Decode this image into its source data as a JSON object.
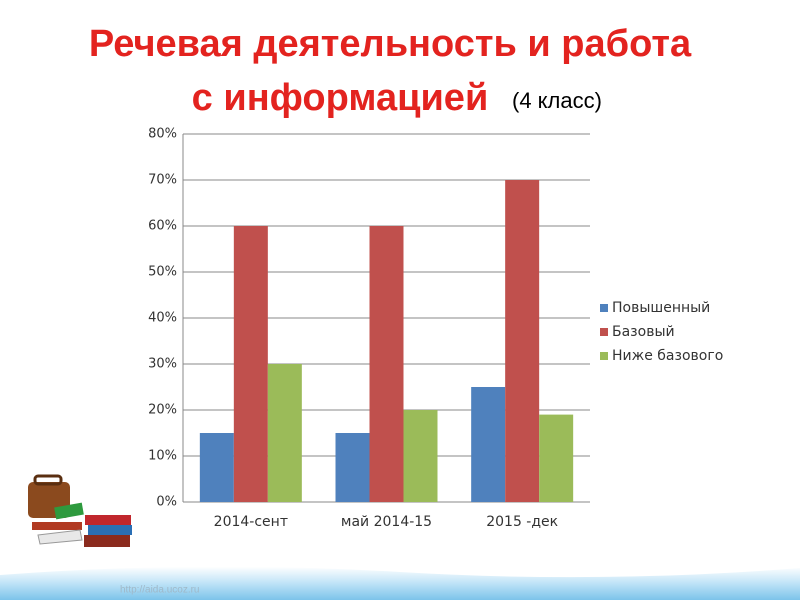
{
  "chart_data": {
    "type": "bar",
    "title": [
      "Речевая деятельность и работа",
      "с информацией"
    ],
    "subtitle": "(4 класс)",
    "categories": [
      "2014-сент",
      "май 2014-15",
      "2015 -дек"
    ],
    "series": [
      {
        "name": "Повышенный",
        "color": "#4f81bd",
        "values": [
          15,
          15,
          25
        ]
      },
      {
        "name": "Базовый",
        "color": "#c0504d",
        "values": [
          60,
          60,
          70
        ]
      },
      {
        "name": "Ниже базового",
        "color": "#9bbb59",
        "values": [
          30,
          20,
          19
        ]
      }
    ],
    "ylim": [
      0,
      80
    ],
    "yticks": [
      {
        "value": 0,
        "label": "0%"
      },
      {
        "value": 10,
        "label": "10%"
      },
      {
        "value": 20,
        "label": "20%"
      },
      {
        "value": 30,
        "label": "30%"
      },
      {
        "value": 40,
        "label": "40%"
      },
      {
        "value": 50,
        "label": "50%"
      },
      {
        "value": 60,
        "label": "60%"
      },
      {
        "value": 70,
        "label": "70%"
      },
      {
        "value": 80,
        "label": "80%"
      }
    ],
    "grid": true,
    "legend": "right",
    "footer": "http://aida.ucoz.ru"
  }
}
